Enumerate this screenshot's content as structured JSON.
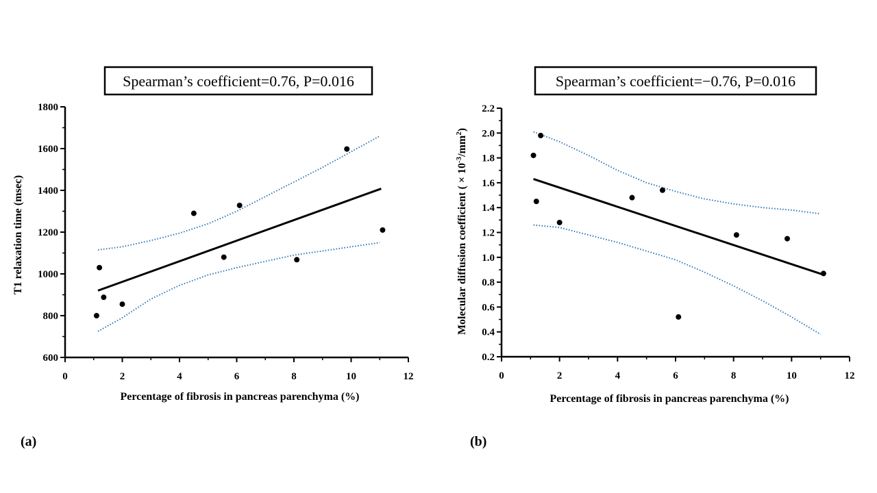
{
  "colors": {
    "ci_band": "#2E75B6",
    "fit_line": "#000000",
    "points": "#000000"
  },
  "chart_data": [
    {
      "type": "scatter",
      "panel_label": "(a)",
      "stat_box": "Spearman’s coefficient=0.76, P=0.016",
      "xlabel": "Percentage of fibrosis in pancreas parenchyma  (%)",
      "ylabel": "T1 relaxation time (msec)",
      "xlim": [
        0,
        12
      ],
      "ylim": [
        600,
        1800
      ],
      "x_ticks": [
        0,
        2,
        4,
        6,
        8,
        10,
        12
      ],
      "y_ticks": [
        600,
        800,
        1000,
        1200,
        1400,
        1600,
        1800
      ],
      "x_tick_labels": [
        "0",
        "2",
        "4",
        "6",
        "8",
        "10",
        "12"
      ],
      "y_tick_labels": [
        "600",
        "800",
        "1000",
        "1200",
        "1400",
        "1600",
        "1800"
      ],
      "points": [
        {
          "x": 1.1,
          "y": 800
        },
        {
          "x": 1.2,
          "y": 1030
        },
        {
          "x": 1.35,
          "y": 888
        },
        {
          "x": 2.0,
          "y": 855
        },
        {
          "x": 4.5,
          "y": 1290
        },
        {
          "x": 5.55,
          "y": 1080
        },
        {
          "x": 6.1,
          "y": 1328
        },
        {
          "x": 8.1,
          "y": 1068
        },
        {
          "x": 9.85,
          "y": 1598
        },
        {
          "x": 11.1,
          "y": 1210
        }
      ],
      "fit_line": [
        {
          "x": 1.15,
          "y": 920
        },
        {
          "x": 11.05,
          "y": 1408
        }
      ],
      "ci_upper": [
        {
          "x": 1.15,
          "y": 1115
        },
        {
          "x": 2.0,
          "y": 1130
        },
        {
          "x": 3.0,
          "y": 1160
        },
        {
          "x": 4.0,
          "y": 1195
        },
        {
          "x": 5.0,
          "y": 1240
        },
        {
          "x": 6.0,
          "y": 1300
        },
        {
          "x": 7.0,
          "y": 1370
        },
        {
          "x": 8.0,
          "y": 1440
        },
        {
          "x": 9.0,
          "y": 1510
        },
        {
          "x": 10.0,
          "y": 1585
        },
        {
          "x": 11.0,
          "y": 1660
        }
      ],
      "ci_lower": [
        {
          "x": 1.15,
          "y": 725
        },
        {
          "x": 2.0,
          "y": 790
        },
        {
          "x": 3.0,
          "y": 880
        },
        {
          "x": 4.0,
          "y": 945
        },
        {
          "x": 5.0,
          "y": 995
        },
        {
          "x": 6.0,
          "y": 1030
        },
        {
          "x": 7.0,
          "y": 1060
        },
        {
          "x": 8.0,
          "y": 1090
        },
        {
          "x": 9.0,
          "y": 1110
        },
        {
          "x": 10.0,
          "y": 1130
        },
        {
          "x": 11.0,
          "y": 1150
        }
      ]
    },
    {
      "type": "scatter",
      "panel_label": "(b)",
      "stat_box": "Spearman’s coefficient=−0.76, P=0.016",
      "xlabel": "Percentage of fibrosis in pancreas parenchyma  (%)",
      "ylabel_prefix": "Molecular  diffusion  coefficient ( × 10",
      "ylabel_sup1": "-3",
      "ylabel_mid": "/mm",
      "ylabel_sup2": "2",
      "ylabel_suffix": ")",
      "xlim": [
        0,
        12
      ],
      "ylim": [
        0.2,
        2.2
      ],
      "x_ticks": [
        0,
        2,
        4,
        6,
        8,
        10,
        12
      ],
      "y_ticks": [
        0.2,
        0.4,
        0.6,
        0.8,
        1.0,
        1.2,
        1.4,
        1.6,
        1.8,
        2.0,
        2.2
      ],
      "x_tick_labels": [
        "0",
        "2",
        "4",
        "6",
        "8",
        "10",
        "12"
      ],
      "y_tick_labels": [
        "0.2",
        "0.4",
        "0.6",
        "0.8",
        "1.0",
        "1.2",
        "1.4",
        "1.6",
        "1.8",
        "2.0",
        "2.2"
      ],
      "points": [
        {
          "x": 1.1,
          "y": 1.82
        },
        {
          "x": 1.2,
          "y": 1.45
        },
        {
          "x": 1.35,
          "y": 1.98
        },
        {
          "x": 2.0,
          "y": 1.28
        },
        {
          "x": 4.5,
          "y": 1.48
        },
        {
          "x": 5.55,
          "y": 1.54
        },
        {
          "x": 6.1,
          "y": 0.52
        },
        {
          "x": 8.1,
          "y": 1.18
        },
        {
          "x": 9.85,
          "y": 1.15
        },
        {
          "x": 11.1,
          "y": 0.87
        }
      ],
      "fit_line": [
        {
          "x": 1.1,
          "y": 1.63
        },
        {
          "x": 11.1,
          "y": 0.86
        }
      ],
      "ci_upper": [
        {
          "x": 1.1,
          "y": 2.01
        },
        {
          "x": 2.0,
          "y": 1.93
        },
        {
          "x": 3.0,
          "y": 1.82
        },
        {
          "x": 4.0,
          "y": 1.7
        },
        {
          "x": 5.0,
          "y": 1.6
        },
        {
          "x": 6.0,
          "y": 1.53
        },
        {
          "x": 7.0,
          "y": 1.47
        },
        {
          "x": 8.0,
          "y": 1.43
        },
        {
          "x": 9.0,
          "y": 1.4
        },
        {
          "x": 10.0,
          "y": 1.38
        },
        {
          "x": 11.0,
          "y": 1.35
        }
      ],
      "ci_lower": [
        {
          "x": 1.1,
          "y": 1.26
        },
        {
          "x": 2.0,
          "y": 1.24
        },
        {
          "x": 3.0,
          "y": 1.18
        },
        {
          "x": 4.0,
          "y": 1.12
        },
        {
          "x": 5.0,
          "y": 1.05
        },
        {
          "x": 6.0,
          "y": 0.98
        },
        {
          "x": 7.0,
          "y": 0.88
        },
        {
          "x": 8.0,
          "y": 0.77
        },
        {
          "x": 9.0,
          "y": 0.65
        },
        {
          "x": 10.0,
          "y": 0.52
        },
        {
          "x": 11.0,
          "y": 0.38
        }
      ]
    }
  ]
}
